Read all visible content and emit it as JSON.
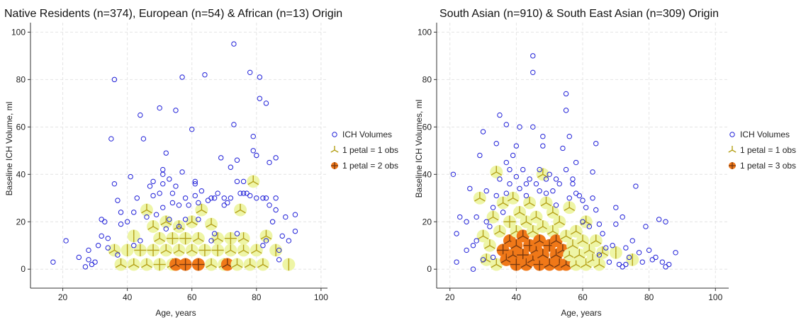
{
  "chart_data": [
    {
      "type": "scatter",
      "title": "Native Residents (n=374), European (n=54) & African (n=13) Origin",
      "xlabel": "Age, years",
      "ylabel": "Baseline ICH Volume, ml",
      "xlim": [
        10,
        102
      ],
      "ylim": [
        -8,
        104
      ],
      "xticks": [
        "20",
        "40",
        "60",
        "80",
        "100"
      ],
      "yticks": [
        "0",
        "20",
        "40",
        "60",
        "80",
        "100"
      ],
      "grid": true,
      "legend_position": "right",
      "legend": [
        "ICH Volumes",
        "1 petal = 1 obs",
        "1 petal = 2 obs"
      ],
      "colors": {
        "circle": "#2020d8",
        "petal_light": "#b5a11a",
        "petal_dark": "#7a3a10",
        "sun_light": "#eef5a6",
        "sun_dark": "#f07818"
      },
      "circles": [
        [
          17,
          3
        ],
        [
          21,
          12
        ],
        [
          25,
          5
        ],
        [
          27,
          1
        ],
        [
          28,
          4
        ],
        [
          28,
          8
        ],
        [
          29,
          2
        ],
        [
          30,
          3
        ],
        [
          31,
          10
        ],
        [
          32,
          14
        ],
        [
          32,
          21
        ],
        [
          33,
          20
        ],
        [
          34,
          9
        ],
        [
          34,
          13
        ],
        [
          35,
          55
        ],
        [
          36,
          80
        ],
        [
          36,
          36
        ],
        [
          37,
          29
        ],
        [
          37,
          6
        ],
        [
          38,
          24
        ],
        [
          38,
          19
        ],
        [
          40,
          20
        ],
        [
          41,
          39
        ],
        [
          42,
          24
        ],
        [
          42,
          10
        ],
        [
          43,
          30
        ],
        [
          44,
          12
        ],
        [
          44,
          65
        ],
        [
          45,
          55
        ],
        [
          46,
          22
        ],
        [
          47,
          35
        ],
        [
          48,
          37
        ],
        [
          48,
          31
        ],
        [
          49,
          23
        ],
        [
          50,
          68
        ],
        [
          50,
          32
        ],
        [
          51,
          42
        ],
        [
          51,
          40
        ],
        [
          51,
          36
        ],
        [
          51,
          26
        ],
        [
          52,
          49
        ],
        [
          52,
          17
        ],
        [
          53,
          38
        ],
        [
          53,
          21
        ],
        [
          54,
          32
        ],
        [
          54,
          28
        ],
        [
          55,
          67
        ],
        [
          55,
          35
        ],
        [
          56,
          27
        ],
        [
          56,
          18
        ],
        [
          57,
          81
        ],
        [
          57,
          41
        ],
        [
          58,
          21
        ],
        [
          58,
          30
        ],
        [
          59,
          27
        ],
        [
          60,
          59
        ],
        [
          61,
          37
        ],
        [
          61,
          36
        ],
        [
          61,
          31
        ],
        [
          62,
          28
        ],
        [
          62,
          21
        ],
        [
          63,
          33
        ],
        [
          64,
          82
        ],
        [
          65,
          29
        ],
        [
          66,
          30
        ],
        [
          67,
          30
        ],
        [
          67,
          15
        ],
        [
          68,
          32
        ],
        [
          69,
          47
        ],
        [
          70,
          30
        ],
        [
          70,
          27
        ],
        [
          71,
          28
        ],
        [
          72,
          30
        ],
        [
          72,
          43
        ],
        [
          73,
          61
        ],
        [
          73,
          95
        ],
        [
          74,
          46
        ],
        [
          74,
          37
        ],
        [
          75,
          32
        ],
        [
          76,
          32
        ],
        [
          76,
          37
        ],
        [
          77,
          32
        ],
        [
          78,
          83
        ],
        [
          78,
          31
        ],
        [
          79,
          50
        ],
        [
          79,
          56
        ],
        [
          80,
          48
        ],
        [
          80,
          30
        ],
        [
          81,
          81
        ],
        [
          81,
          72
        ],
        [
          82,
          30
        ],
        [
          82,
          10
        ],
        [
          83,
          70
        ],
        [
          83,
          30
        ],
        [
          84,
          45
        ],
        [
          84,
          27
        ],
        [
          85,
          20
        ],
        [
          86,
          47
        ],
        [
          86,
          25
        ],
        [
          86,
          30
        ],
        [
          87,
          8
        ],
        [
          88,
          14
        ],
        [
          89,
          22
        ],
        [
          90,
          12
        ],
        [
          92,
          23
        ],
        [
          92,
          16
        ],
        [
          87,
          4
        ],
        [
          83,
          12
        ],
        [
          74,
          15
        ],
        [
          66,
          12
        ]
      ],
      "sunflowers": [
        [
          36,
          8,
          3,
          0
        ],
        [
          38,
          2,
          3,
          0
        ],
        [
          40,
          8,
          2,
          0
        ],
        [
          42,
          14,
          2,
          0
        ],
        [
          42,
          2,
          3,
          0
        ],
        [
          44,
          8,
          4,
          0
        ],
        [
          46,
          2,
          3,
          0
        ],
        [
          46,
          25,
          3,
          0
        ],
        [
          48,
          8,
          4,
          0
        ],
        [
          48,
          18,
          3,
          0
        ],
        [
          50,
          2,
          4,
          0
        ],
        [
          50,
          13,
          3,
          0
        ],
        [
          52,
          8,
          3,
          0
        ],
        [
          52,
          20,
          3,
          0
        ],
        [
          54,
          2,
          3,
          0
        ],
        [
          54,
          13,
          4,
          0
        ],
        [
          55,
          2,
          3,
          1
        ],
        [
          56,
          8,
          3,
          0
        ],
        [
          56,
          18,
          3,
          0
        ],
        [
          58,
          2,
          4,
          1
        ],
        [
          58,
          13,
          4,
          0
        ],
        [
          60,
          8,
          3,
          0
        ],
        [
          60,
          20,
          3,
          0
        ],
        [
          62,
          2,
          4,
          1
        ],
        [
          62,
          13,
          3,
          0
        ],
        [
          63,
          25,
          3,
          0
        ],
        [
          64,
          8,
          4,
          0
        ],
        [
          66,
          2,
          3,
          0
        ],
        [
          66,
          19,
          3,
          0
        ],
        [
          68,
          8,
          4,
          0
        ],
        [
          68,
          13,
          3,
          0
        ],
        [
          70,
          2,
          3,
          0
        ],
        [
          71,
          2,
          3,
          1
        ],
        [
          72,
          8,
          3,
          0
        ],
        [
          72,
          13,
          4,
          0
        ],
        [
          74,
          2,
          3,
          0
        ],
        [
          75,
          25,
          3,
          0
        ],
        [
          76,
          8,
          3,
          0
        ],
        [
          76,
          13,
          3,
          0
        ],
        [
          78,
          2,
          3,
          0
        ],
        [
          79,
          37,
          3,
          0
        ],
        [
          80,
          8,
          3,
          0
        ],
        [
          82,
          2,
          3,
          0
        ],
        [
          83,
          14,
          3,
          0
        ],
        [
          86,
          8,
          2,
          0
        ],
        [
          90,
          2,
          2,
          0
        ]
      ]
    },
    {
      "type": "scatter",
      "title": "South Asian (n=910) & South East Asian (n=309) Origin",
      "xlabel": "Age, years",
      "ylabel": "Baseline ICH Volumes, ml",
      "xlim": [
        16,
        104
      ],
      "ylim": [
        -8,
        104
      ],
      "xticks": [
        "20",
        "40",
        "60",
        "80",
        "100"
      ],
      "yticks": [
        "0",
        "20",
        "40",
        "60",
        "80",
        "100"
      ],
      "grid": true,
      "legend_position": "right",
      "legend": [
        "ICH Volumes",
        "1 petal = 1 obs",
        "1 petal = 3 obs"
      ],
      "colors": {
        "circle": "#2020d8",
        "petal_light": "#b5a11a",
        "petal_dark": "#7a3a10",
        "sun_light": "#eef5a6",
        "sun_dark": "#f07818"
      },
      "circles": [
        [
          21,
          40
        ],
        [
          22,
          3
        ],
        [
          22,
          15
        ],
        [
          23,
          22
        ],
        [
          25,
          8
        ],
        [
          25,
          20
        ],
        [
          26,
          34
        ],
        [
          27,
          10
        ],
        [
          27,
          0
        ],
        [
          28,
          22
        ],
        [
          28,
          12
        ],
        [
          29,
          48
        ],
        [
          30,
          58
        ],
        [
          30,
          4
        ],
        [
          31,
          33
        ],
        [
          31,
          20
        ],
        [
          32,
          18
        ],
        [
          33,
          26
        ],
        [
          33,
          5
        ],
        [
          34,
          53
        ],
        [
          34,
          31
        ],
        [
          35,
          65
        ],
        [
          35,
          38
        ],
        [
          36,
          24
        ],
        [
          37,
          61
        ],
        [
          37,
          45
        ],
        [
          37,
          32
        ],
        [
          38,
          42
        ],
        [
          38,
          36
        ],
        [
          39,
          48
        ],
        [
          40,
          52
        ],
        [
          40,
          39
        ],
        [
          41,
          60
        ],
        [
          41,
          34
        ],
        [
          42,
          42
        ],
        [
          43,
          31
        ],
        [
          43,
          36
        ],
        [
          44,
          38
        ],
        [
          45,
          90
        ],
        [
          45,
          60
        ],
        [
          45,
          83
        ],
        [
          46,
          36
        ],
        [
          47,
          42
        ],
        [
          47,
          33
        ],
        [
          48,
          56
        ],
        [
          48,
          52
        ],
        [
          49,
          38
        ],
        [
          49,
          32
        ],
        [
          50,
          40
        ],
        [
          51,
          33
        ],
        [
          52,
          38
        ],
        [
          52,
          27
        ],
        [
          53,
          36
        ],
        [
          54,
          51
        ],
        [
          55,
          74
        ],
        [
          55,
          67
        ],
        [
          55,
          42
        ],
        [
          56,
          56
        ],
        [
          56,
          30
        ],
        [
          57,
          38
        ],
        [
          57,
          36
        ],
        [
          58,
          45
        ],
        [
          58,
          32
        ],
        [
          59,
          31
        ],
        [
          60,
          29
        ],
        [
          60,
          20
        ],
        [
          61,
          26
        ],
        [
          62,
          18
        ],
        [
          63,
          41
        ],
        [
          63,
          30
        ],
        [
          64,
          53
        ],
        [
          64,
          25
        ],
        [
          65,
          19
        ],
        [
          65,
          6
        ],
        [
          66,
          15
        ],
        [
          67,
          9
        ],
        [
          68,
          3
        ],
        [
          69,
          10
        ],
        [
          70,
          19
        ],
        [
          70,
          26
        ],
        [
          71,
          2
        ],
        [
          72,
          22
        ],
        [
          73,
          9
        ],
        [
          73,
          2
        ],
        [
          74,
          5
        ],
        [
          75,
          12
        ],
        [
          76,
          35
        ],
        [
          77,
          7
        ],
        [
          78,
          3
        ],
        [
          79,
          18
        ],
        [
          80,
          8
        ],
        [
          81,
          4
        ],
        [
          82,
          5
        ],
        [
          83,
          21
        ],
        [
          84,
          3
        ],
        [
          85,
          20
        ],
        [
          86,
          2
        ],
        [
          88,
          7
        ],
        [
          85,
          1
        ],
        [
          72,
          1
        ]
      ],
      "sunflowers": [
        [
          29,
          30,
          3,
          0
        ],
        [
          30,
          14,
          3,
          0
        ],
        [
          31,
          4,
          3,
          0
        ],
        [
          32,
          10,
          3,
          0
        ],
        [
          33,
          22,
          3,
          0
        ],
        [
          34,
          41,
          3,
          0
        ],
        [
          34,
          2,
          3,
          0
        ],
        [
          35,
          16,
          3,
          0
        ],
        [
          36,
          8,
          4,
          1
        ],
        [
          36,
          28,
          3,
          0
        ],
        [
          37,
          4,
          3,
          1
        ],
        [
          38,
          12,
          3,
          1
        ],
        [
          38,
          20,
          4,
          0
        ],
        [
          39,
          6,
          3,
          1
        ],
        [
          39,
          30,
          3,
          0
        ],
        [
          40,
          2,
          4,
          1
        ],
        [
          40,
          10,
          3,
          1
        ],
        [
          40,
          16,
          3,
          0
        ],
        [
          41,
          24,
          3,
          0
        ],
        [
          42,
          6,
          4,
          1
        ],
        [
          42,
          14,
          3,
          1
        ],
        [
          43,
          2,
          3,
          1
        ],
        [
          43,
          20,
          3,
          0
        ],
        [
          44,
          10,
          4,
          1
        ],
        [
          44,
          28,
          3,
          0
        ],
        [
          45,
          4,
          3,
          1
        ],
        [
          45,
          16,
          3,
          0
        ],
        [
          46,
          8,
          3,
          1
        ],
        [
          46,
          22,
          3,
          0
        ],
        [
          47,
          2,
          4,
          1
        ],
        [
          47,
          12,
          3,
          1
        ],
        [
          48,
          40,
          3,
          0
        ],
        [
          48,
          6,
          3,
          1
        ],
        [
          48,
          18,
          3,
          0
        ],
        [
          49,
          28,
          3,
          0
        ],
        [
          50,
          10,
          4,
          1
        ],
        [
          50,
          2,
          3,
          1
        ],
        [
          51,
          16,
          3,
          0
        ],
        [
          51,
          24,
          3,
          0
        ],
        [
          52,
          6,
          3,
          1
        ],
        [
          52,
          12,
          3,
          1
        ],
        [
          53,
          2,
          3,
          1
        ],
        [
          53,
          20,
          3,
          0
        ],
        [
          54,
          8,
          3,
          1
        ],
        [
          55,
          14,
          3,
          0
        ],
        [
          55,
          2,
          3,
          1
        ],
        [
          56,
          26,
          3,
          0
        ],
        [
          56,
          6,
          3,
          0
        ],
        [
          57,
          10,
          3,
          0
        ],
        [
          58,
          2,
          3,
          0
        ],
        [
          58,
          16,
          3,
          0
        ],
        [
          59,
          6,
          3,
          0
        ],
        [
          60,
          12,
          3,
          0
        ],
        [
          61,
          2,
          3,
          0
        ],
        [
          61,
          20,
          3,
          0
        ],
        [
          62,
          8,
          3,
          0
        ],
        [
          63,
          4,
          3,
          0
        ],
        [
          64,
          12,
          3,
          0
        ],
        [
          65,
          2,
          3,
          0
        ],
        [
          66,
          7,
          3,
          0
        ],
        [
          70,
          7,
          2,
          0
        ],
        [
          75,
          4,
          2,
          0
        ]
      ]
    }
  ]
}
